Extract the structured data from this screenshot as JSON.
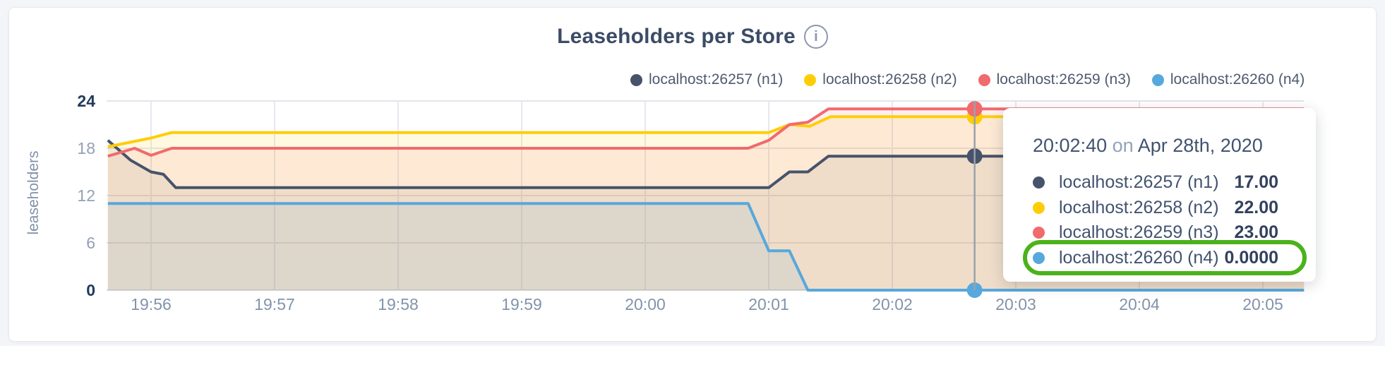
{
  "card": {
    "title": "Leaseholders per Store",
    "info_icon_glyph": "i"
  },
  "legend": {
    "items": [
      {
        "label": "localhost:26257 (n1)",
        "color": "#46536b"
      },
      {
        "label": "localhost:26258 (n2)",
        "color": "#ffcd05"
      },
      {
        "label": "localhost:26259 (n3)",
        "color": "#f16a6e"
      },
      {
        "label": "localhost:26260 (n4)",
        "color": "#57a8dc"
      }
    ]
  },
  "chart_data": {
    "type": "area",
    "title": "Leaseholders per Store",
    "xlabel": "",
    "ylabel": "leaseholders",
    "ylim": [
      0,
      24
    ],
    "y_ticks": [
      0,
      6,
      12,
      18,
      24
    ],
    "x_ticks": [
      "19:56",
      "19:57",
      "19:58",
      "19:59",
      "20:00",
      "20:01",
      "20:02",
      "20:03",
      "20:04",
      "20:05"
    ],
    "grid": true,
    "legend_position": "top-right",
    "series": [
      {
        "name": "localhost:26257 (n1)",
        "color": "#46536b",
        "points": [
          [
            "19:55:39",
            19
          ],
          [
            "19:55:50",
            16.5
          ],
          [
            "19:56:00",
            15
          ],
          [
            "19:56:06",
            14.7
          ],
          [
            "19:56:12",
            13
          ],
          [
            "20:01:00",
            13
          ],
          [
            "20:01:10",
            15
          ],
          [
            "20:01:19",
            15
          ],
          [
            "20:01:29",
            17
          ],
          [
            "20:05:20",
            17
          ]
        ]
      },
      {
        "name": "localhost:26258 (n2)",
        "color": "#ffcd05",
        "points": [
          [
            "19:55:39",
            18.2
          ],
          [
            "19:56:00",
            19.3
          ],
          [
            "19:56:10",
            20
          ],
          [
            "20:01:00",
            20
          ],
          [
            "20:01:10",
            21
          ],
          [
            "20:01:20",
            20.8
          ],
          [
            "20:01:30",
            22
          ],
          [
            "20:05:20",
            22
          ]
        ]
      },
      {
        "name": "localhost:26259 (n3)",
        "color": "#f16a6e",
        "points": [
          [
            "19:55:39",
            17
          ],
          [
            "19:55:52",
            18
          ],
          [
            "19:56:00",
            17.1
          ],
          [
            "19:56:10",
            18
          ],
          [
            "20:00:50",
            18
          ],
          [
            "20:01:00",
            19
          ],
          [
            "20:01:10",
            21
          ],
          [
            "20:01:19",
            21.3
          ],
          [
            "20:01:29",
            23
          ],
          [
            "20:05:20",
            23
          ]
        ]
      },
      {
        "name": "localhost:26260 (n4)",
        "color": "#57a8dc",
        "points": [
          [
            "19:55:39",
            11
          ],
          [
            "20:00:50",
            11
          ],
          [
            "20:01:00",
            5
          ],
          [
            "20:01:10",
            5
          ],
          [
            "20:01:19",
            0
          ],
          [
            "20:05:20",
            0
          ]
        ]
      }
    ]
  },
  "hover": {
    "time": "20:02:40",
    "values": [
      17,
      22,
      23,
      0
    ]
  },
  "tooltip": {
    "time": "20:02:40",
    "on_word": "on",
    "date": "Apr 28th, 2020",
    "rows": [
      {
        "label": "localhost:26257 (n1)",
        "value": "17.00",
        "color": "#46536b"
      },
      {
        "label": "localhost:26258 (n2)",
        "value": "22.00",
        "color": "#ffcd05"
      },
      {
        "label": "localhost:26259 (n3)",
        "value": "23.00",
        "color": "#f16a6e"
      },
      {
        "label": "localhost:26260 (n4)",
        "value": "0.0000",
        "color": "#57a8dc"
      }
    ],
    "highlight_color": "#4bb21b"
  }
}
